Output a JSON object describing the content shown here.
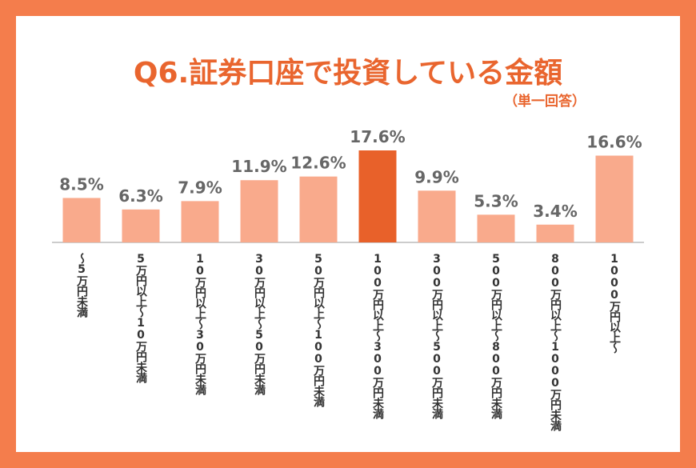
{
  "chart_data": {
    "type": "bar",
    "title": "Q6.証券口座で投資している金額",
    "subtitle": "（単一回答）",
    "categories": [
      "～5万円未満",
      "5万円以上～10万円未満",
      "10万円以上～30万円未満",
      "30万円以上～50万円未満",
      "50万円以上～100万円未満",
      "100万円以上～300万円未満",
      "300万円以上～500万円未満",
      "500万円以上～800万円未満",
      "800万円以上～1000万円未満",
      "1000万円以上～"
    ],
    "values": [
      8.5,
      6.3,
      7.9,
      11.9,
      12.6,
      17.6,
      9.9,
      5.3,
      3.4,
      16.6
    ],
    "value_labels": [
      "8.5%",
      "6.3%",
      "7.9%",
      "11.9%",
      "12.6%",
      "17.6%",
      "9.9%",
      "5.3%",
      "3.4%",
      "16.6%"
    ],
    "colors": [
      "#f9aa8c",
      "#f9aa8c",
      "#f9aa8c",
      "#f9aa8c",
      "#f9aa8c",
      "#e8612a",
      "#f9aa8c",
      "#f9aa8c",
      "#f9aa8c",
      "#f9aa8c"
    ]
  }
}
